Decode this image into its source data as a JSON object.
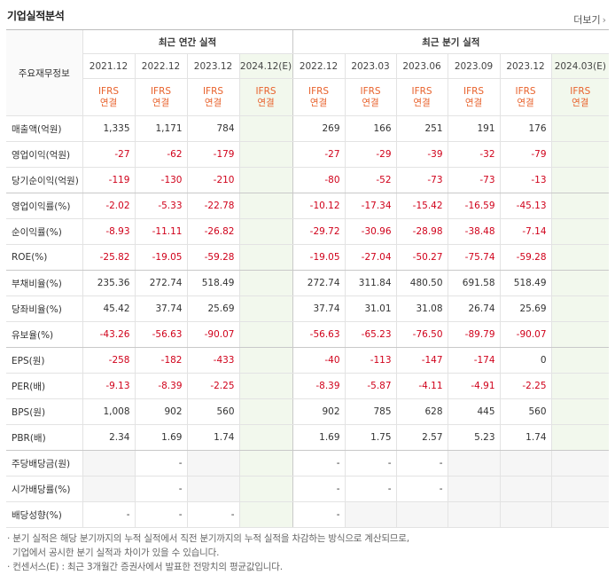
{
  "header": {
    "title": "기업실적분석",
    "more_label": "더보기",
    "more_arrow": "›"
  },
  "table": {
    "corner_label": "주요재무정보",
    "annual_group": "최근 연간 실적",
    "quarter_group": "최근 분기 실적",
    "annual_periods": [
      "2021.12",
      "2022.12",
      "2023.12",
      "2024.12(E)"
    ],
    "quarter_periods": [
      "2022.12",
      "2023.03",
      "2023.06",
      "2023.09",
      "2023.12",
      "2024.03(E)"
    ],
    "ifrs_top": "IFRS",
    "ifrs_bottom": "연결",
    "rows": [
      {
        "label": "매출액(억원)",
        "values": [
          "1,335",
          "1,171",
          "784",
          "",
          "269",
          "166",
          "251",
          "191",
          "176",
          ""
        ]
      },
      {
        "label": "영업이익(억원)",
        "values": [
          "-27",
          "-62",
          "-179",
          "",
          "-27",
          "-29",
          "-39",
          "-32",
          "-79",
          ""
        ]
      },
      {
        "label": "당기순이익(억원)",
        "values": [
          "-119",
          "-130",
          "-210",
          "",
          "-80",
          "-52",
          "-73",
          "-73",
          "-13",
          ""
        ]
      },
      {
        "label": "영업이익률(%)",
        "values": [
          "-2.02",
          "-5.33",
          "-22.78",
          "",
          "-10.12",
          "-17.34",
          "-15.42",
          "-16.59",
          "-45.13",
          ""
        ]
      },
      {
        "label": "순이익률(%)",
        "values": [
          "-8.93",
          "-11.11",
          "-26.82",
          "",
          "-29.72",
          "-30.96",
          "-28.98",
          "-38.48",
          "-7.14",
          ""
        ]
      },
      {
        "label": "ROE(%)",
        "values": [
          "-25.82",
          "-19.05",
          "-59.28",
          "",
          "-19.05",
          "-27.04",
          "-50.27",
          "-75.74",
          "-59.28",
          ""
        ]
      },
      {
        "label": "부채비율(%)",
        "values": [
          "235.36",
          "272.74",
          "518.49",
          "",
          "272.74",
          "311.84",
          "480.50",
          "691.58",
          "518.49",
          ""
        ]
      },
      {
        "label": "당좌비율(%)",
        "values": [
          "45.42",
          "37.74",
          "25.69",
          "",
          "37.74",
          "31.01",
          "31.08",
          "26.74",
          "25.69",
          ""
        ]
      },
      {
        "label": "유보율(%)",
        "values": [
          "-43.26",
          "-56.63",
          "-90.07",
          "",
          "-56.63",
          "-65.23",
          "-76.50",
          "-89.79",
          "-90.07",
          ""
        ]
      },
      {
        "label": "EPS(원)",
        "values": [
          "-258",
          "-182",
          "-433",
          "",
          "-40",
          "-113",
          "-147",
          "-174",
          "0",
          ""
        ]
      },
      {
        "label": "PER(배)",
        "values": [
          "-9.13",
          "-8.39",
          "-2.25",
          "",
          "-8.39",
          "-5.87",
          "-4.11",
          "-4.91",
          "-2.25",
          ""
        ]
      },
      {
        "label": "BPS(원)",
        "values": [
          "1,008",
          "902",
          "560",
          "",
          "902",
          "785",
          "628",
          "445",
          "560",
          ""
        ]
      },
      {
        "label": "PBR(배)",
        "values": [
          "2.34",
          "1.69",
          "1.74",
          "",
          "1.69",
          "1.75",
          "2.57",
          "5.23",
          "1.74",
          ""
        ]
      },
      {
        "label": "주당배당금(원)",
        "values": [
          "",
          "-",
          "",
          "",
          "-",
          "-",
          "-",
          "",
          "",
          ""
        ]
      },
      {
        "label": "시가배당률(%)",
        "values": [
          "",
          "-",
          "",
          "",
          "-",
          "-",
          "-",
          "",
          "",
          ""
        ]
      },
      {
        "label": "배당성향(%)",
        "values": [
          "-",
          "-",
          "-",
          "",
          "-",
          "",
          "",
          "",
          "",
          ""
        ]
      }
    ]
  },
  "notes": [
    "· 분기 실적은 해당 분기까지의 누적 실적에서 직전 분기까지의 누적 실적을 차감하는 방식으로 계산되므로,",
    "  기업에서 공시한 분기 실적과 차이가 있을 수 있습니다.",
    "· 컨센서스(E) : 최근 3개월간 증권사에서 발표한 전망치의 평균값입니다."
  ],
  "colors": {
    "negative": "#d0021b",
    "ifrs": "#e8622c",
    "estimate_bg": "#f2f8ed"
  }
}
